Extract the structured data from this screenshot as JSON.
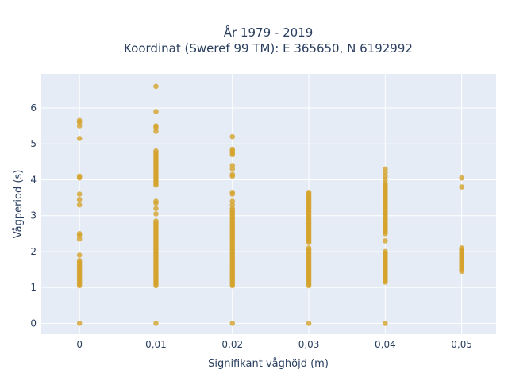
{
  "title_line1": "År 1979 - 2019",
  "title_line2": "Koordinat (Sweref 99 TM): E 365650, N 6192992",
  "colors": {
    "plot_bg": "#e5ecf6",
    "grid": "#ffffff",
    "marker": "#d4a32a",
    "text": "#2a3f5f"
  },
  "chart_data": {
    "type": "scatter",
    "title": "År 1979 - 2019 / Koordinat (Sweref 99 TM): E 365650, N 6192992",
    "xlabel": "Signifikant våghöjd (m)",
    "ylabel": "Vågperiod (s)",
    "xlim": [
      -0.005,
      0.0545
    ],
    "ylim": [
      -0.3,
      6.95
    ],
    "grid": true,
    "x_ticks": [
      0,
      0.01,
      0.02,
      0.03,
      0.04,
      0.05
    ],
    "x_tick_labels": [
      "0",
      "0,01",
      "0,02",
      "0,03",
      "0,04",
      "0,05"
    ],
    "y_ticks": [
      0,
      1,
      2,
      3,
      4,
      5,
      6
    ],
    "y_tick_labels": [
      "0",
      "1",
      "2",
      "3",
      "4",
      "5",
      "6"
    ],
    "series": [
      {
        "points": [
          {
            "x": 0,
            "y": [
              0,
              1.05,
              1.1,
              1.15,
              1.2,
              1.25,
              1.3,
              1.35,
              1.4,
              1.45,
              1.5,
              1.55,
              1.6,
              1.65,
              1.7,
              1.75,
              1.9,
              2.35,
              2.45,
              2.5,
              3.3,
              3.45,
              3.6,
              4.05,
              4.1,
              5.15,
              5.5,
              5.6,
              5.65
            ]
          },
          {
            "x": 0.01,
            "y": [
              0,
              1.05,
              1.1,
              1.15,
              1.2,
              1.25,
              1.3,
              1.35,
              1.4,
              1.45,
              1.5,
              1.55,
              1.6,
              1.65,
              1.7,
              1.75,
              1.8,
              1.85,
              1.9,
              1.95,
              2.0,
              2.05,
              2.1,
              2.15,
              2.2,
              2.25,
              2.3,
              2.35,
              2.4,
              2.45,
              2.5,
              2.55,
              2.6,
              2.65,
              2.7,
              2.75,
              2.8,
              2.85,
              3.05,
              3.2,
              3.35,
              3.4,
              3.85,
              3.9,
              3.95,
              4.0,
              4.05,
              4.1,
              4.15,
              4.2,
              4.25,
              4.3,
              4.35,
              4.4,
              4.45,
              4.5,
              4.55,
              4.6,
              4.65,
              4.7,
              4.75,
              4.8,
              5.35,
              5.45,
              5.5,
              5.9,
              6.6
            ]
          },
          {
            "x": 0.02,
            "y": [
              0,
              1.05,
              1.1,
              1.15,
              1.2,
              1.25,
              1.3,
              1.35,
              1.4,
              1.45,
              1.5,
              1.55,
              1.6,
              1.65,
              1.7,
              1.75,
              1.8,
              1.85,
              1.9,
              1.95,
              2.0,
              2.05,
              2.1,
              2.15,
              2.2,
              2.25,
              2.3,
              2.35,
              2.4,
              2.45,
              2.5,
              2.55,
              2.6,
              2.65,
              2.7,
              2.75,
              2.8,
              2.85,
              2.9,
              2.95,
              3.0,
              3.05,
              3.1,
              3.15,
              3.2,
              3.3,
              3.4,
              3.6,
              3.65,
              4.1,
              4.15,
              4.3,
              4.4,
              4.7,
              4.75,
              4.8,
              4.85,
              5.2
            ]
          },
          {
            "x": 0.03,
            "y": [
              0,
              1.05,
              1.1,
              1.15,
              1.2,
              1.25,
              1.3,
              1.35,
              1.4,
              1.45,
              1.5,
              1.55,
              1.6,
              1.65,
              1.7,
              1.75,
              1.8,
              1.85,
              1.9,
              1.95,
              2.0,
              2.05,
              2.1,
              2.25,
              2.3,
              2.35,
              2.4,
              2.45,
              2.5,
              2.55,
              2.6,
              2.65,
              2.7,
              2.75,
              2.8,
              2.85,
              2.9,
              2.95,
              3.0,
              3.05,
              3.1,
              3.15,
              3.2,
              3.25,
              3.3,
              3.35,
              3.4,
              3.45,
              3.5,
              3.55,
              3.6,
              3.65
            ]
          },
          {
            "x": 0.04,
            "y": [
              0,
              1.15,
              1.2,
              1.25,
              1.3,
              1.35,
              1.4,
              1.45,
              1.5,
              1.55,
              1.6,
              1.65,
              1.7,
              1.75,
              1.8,
              1.85,
              1.9,
              1.95,
              2.0,
              2.3,
              2.5,
              2.55,
              2.6,
              2.65,
              2.7,
              2.75,
              2.8,
              2.85,
              2.9,
              2.95,
              3.0,
              3.05,
              3.1,
              3.15,
              3.2,
              3.25,
              3.3,
              3.35,
              3.4,
              3.45,
              3.5,
              3.55,
              3.6,
              3.65,
              3.7,
              3.75,
              3.8,
              3.85,
              3.9,
              4.0,
              4.1,
              4.2,
              4.3
            ]
          },
          {
            "x": 0.05,
            "y": [
              1.45,
              1.5,
              1.55,
              1.6,
              1.65,
              1.7,
              1.75,
              1.8,
              1.85,
              1.9,
              1.95,
              2.0,
              2.05,
              2.1,
              3.8,
              4.05
            ]
          }
        ]
      }
    ]
  }
}
